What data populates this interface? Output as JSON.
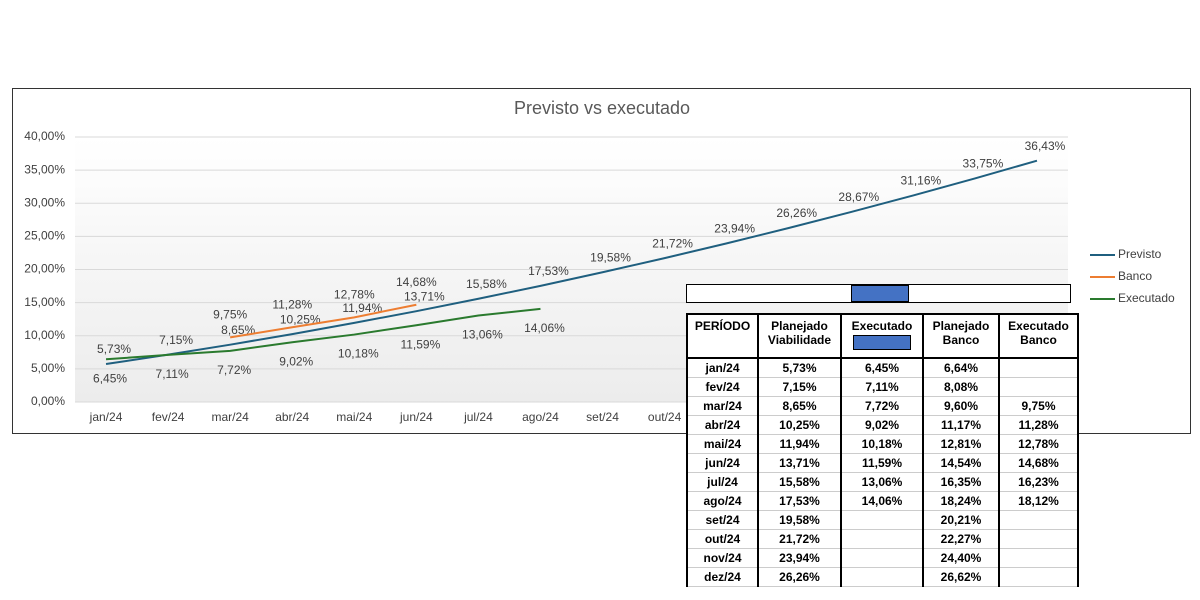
{
  "chart_data": {
    "type": "line",
    "title": "Previsto vs executado",
    "categories": [
      "jan/24",
      "fev/24",
      "mar/24",
      "abr/24",
      "mai/24",
      "jun/24",
      "jul/24",
      "ago/24",
      "set/24",
      "out/24",
      null,
      null,
      null,
      null,
      null,
      null
    ],
    "series": [
      {
        "name": "Previsto",
        "color": "#1f5f7f",
        "values": [
          5.73,
          7.15,
          8.65,
          10.25,
          11.94,
          13.71,
          15.58,
          17.53,
          19.58,
          21.72,
          23.94,
          26.26,
          28.67,
          31.16,
          33.75,
          36.43
        ],
        "value_labels": [
          "5,73%",
          "7,15%",
          "8,65%",
          "10,25%",
          "11,94%",
          "13,71%",
          "15,58%",
          "17,53%",
          "19,58%",
          "21,72%",
          "23,94%",
          "26,26%",
          "28,67%",
          "31,16%",
          "33,75%",
          "36,43%"
        ]
      },
      {
        "name": "Banco",
        "color": "#ed7d31",
        "values": [
          null,
          null,
          9.75,
          11.28,
          12.78,
          14.68,
          null,
          null,
          null,
          null,
          null,
          null,
          null,
          null,
          null,
          null
        ],
        "value_labels": [
          null,
          null,
          "9,75%",
          "11,28%",
          "12,78%",
          "14,68%",
          null,
          null,
          null,
          null,
          null,
          null,
          null,
          null,
          null,
          null
        ]
      },
      {
        "name": "Executado",
        "color": "#2a7a2e",
        "values": [
          6.45,
          7.11,
          7.72,
          9.02,
          10.18,
          11.59,
          13.06,
          14.06,
          null,
          null,
          null,
          null,
          null,
          null,
          null,
          null
        ],
        "value_labels": [
          "6,45%",
          "7,11%",
          "7,72%",
          "9,02%",
          "10,18%",
          "11,59%",
          "13,06%",
          "14,06%",
          null,
          null,
          null,
          null,
          null,
          null,
          null,
          null
        ]
      }
    ],
    "ylim": [
      0,
      40
    ],
    "yticks": [
      {
        "value": 0,
        "label": "0,00%"
      },
      {
        "value": 5,
        "label": "5,00%"
      },
      {
        "value": 10,
        "label": "10,00%"
      },
      {
        "value": 15,
        "label": "15,00%"
      },
      {
        "value": 20,
        "label": "20,00%"
      },
      {
        "value": 25,
        "label": "25,00%"
      },
      {
        "value": 30,
        "label": "30,00%"
      },
      {
        "value": 35,
        "label": "35,00%"
      },
      {
        "value": 40,
        "label": "40,00%"
      }
    ],
    "grid": true,
    "legend": "right"
  },
  "table": {
    "headers": [
      "PERÍODO",
      "Planejado Viabilidade",
      "Executado",
      "Planejado Banco",
      "Executado Banco"
    ],
    "rows": [
      [
        "jan/24",
        "5,73%",
        "6,45%",
        "6,64%",
        null
      ],
      [
        "fev/24",
        "7,15%",
        "7,11%",
        "8,08%",
        null
      ],
      [
        "mar/24",
        "8,65%",
        "7,72%",
        "9,60%",
        "9,75%"
      ],
      [
        "abr/24",
        "10,25%",
        "9,02%",
        "11,17%",
        "11,28%"
      ],
      [
        "mai/24",
        "11,94%",
        "10,18%",
        "12,81%",
        "12,78%"
      ],
      [
        "jun/24",
        "13,71%",
        "11,59%",
        "14,54%",
        "14,68%"
      ],
      [
        "jul/24",
        "15,58%",
        "13,06%",
        "16,35%",
        "16,23%"
      ],
      [
        "ago/24",
        "17,53%",
        "14,06%",
        "18,24%",
        "18,12%"
      ],
      [
        "set/24",
        "19,58%",
        null,
        "20,21%",
        null
      ],
      [
        "out/24",
        "21,72%",
        null,
        "22,27%",
        null
      ],
      [
        "nov/24",
        "23,94%",
        null,
        "24,40%",
        null
      ],
      [
        "dez/24",
        "26,26%",
        null,
        "26,62%",
        null
      ]
    ]
  }
}
